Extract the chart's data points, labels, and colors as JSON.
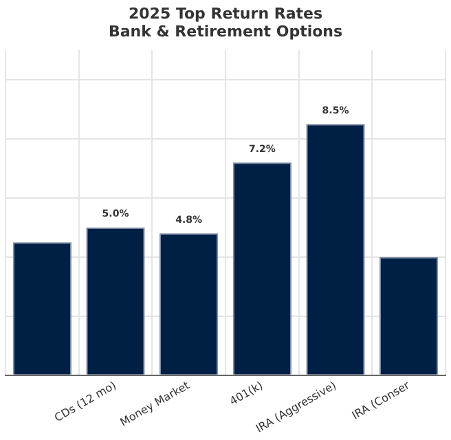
{
  "chart_data": {
    "type": "bar",
    "title": "2025 Top Return Rates",
    "subtitle": "Bank & Retirement Options",
    "categories": [
      null,
      "CDs (12 mo)",
      "Money Market",
      "401(k)",
      "IRA (Aggressive)",
      "IRA (Conser"
    ],
    "values": [
      4.5,
      5.0,
      4.8,
      7.2,
      8.5,
      4.0
    ],
    "value_labels": [
      null,
      "5.0%",
      "4.8%",
      "7.2%",
      "8.5%",
      null
    ],
    "color": "#001f44",
    "ylim": [
      0,
      11
    ],
    "yticks": [
      0,
      2,
      4,
      6,
      8,
      10
    ],
    "grid": true,
    "tick_labels": "x",
    "legend": false
  }
}
